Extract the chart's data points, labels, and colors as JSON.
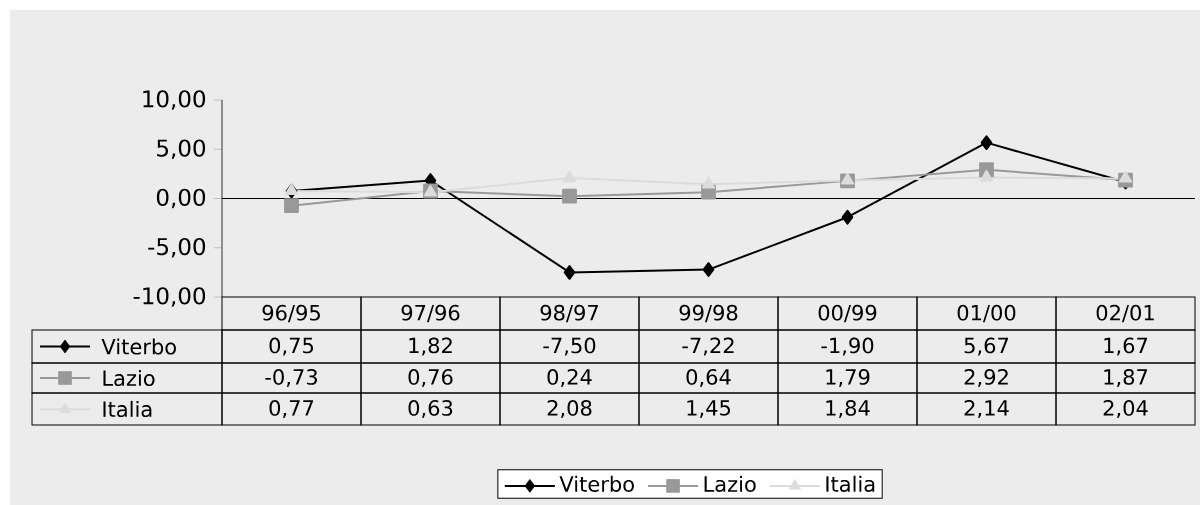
{
  "chart_data": {
    "type": "line",
    "categories": [
      "96/95",
      "97/96",
      "98/97",
      "99/98",
      "00/99",
      "01/00",
      "02/01"
    ],
    "series": [
      {
        "name": "Viterbo",
        "color": "#000000",
        "marker": "diamond",
        "values": [
          0.75,
          1.82,
          -7.5,
          -7.22,
          -1.9,
          5.67,
          1.67
        ],
        "value_labels": [
          "0,75",
          "1,82",
          "-7,50",
          "-7,22",
          "-1,90",
          "5,67",
          "1,67"
        ]
      },
      {
        "name": "Lazio",
        "color": "#999999",
        "marker": "square",
        "values": [
          -0.73,
          0.76,
          0.24,
          0.64,
          1.79,
          2.92,
          1.87
        ],
        "value_labels": [
          "-0,73",
          "0,76",
          "0,24",
          "0,64",
          "1,79",
          "2,92",
          "1,87"
        ]
      },
      {
        "name": "Italia",
        "color": "#dcdcdc",
        "marker": "triangle",
        "values": [
          0.77,
          0.63,
          2.08,
          1.45,
          1.84,
          2.14,
          2.04
        ],
        "value_labels": [
          "0,77",
          "0,63",
          "2,08",
          "1,45",
          "1,84",
          "2,14",
          "2,04"
        ]
      }
    ],
    "ylim": [
      -10,
      10
    ],
    "yticks": [
      {
        "value": -10,
        "label": "-10,00"
      },
      {
        "value": -5,
        "label": "-5,00"
      },
      {
        "value": 0,
        "label": "0,00"
      },
      {
        "value": 5,
        "label": "5,00"
      },
      {
        "value": 10,
        "label": "10,00"
      }
    ],
    "ref_lines": [
      {
        "axis": "y",
        "value": 0
      }
    ],
    "grid": false,
    "legend": "bottom",
    "line_style": "solid"
  }
}
